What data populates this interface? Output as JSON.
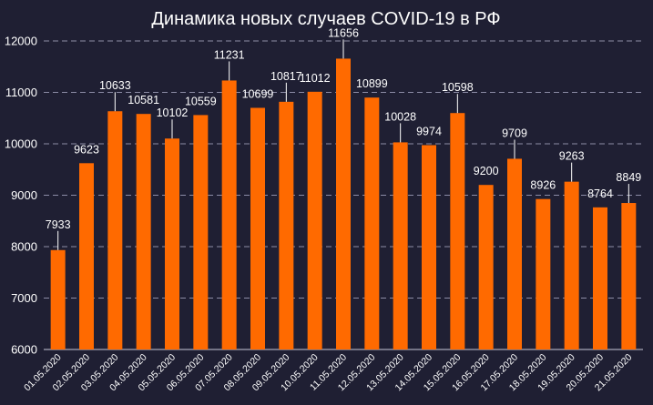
{
  "chart_data": {
    "type": "bar",
    "title": "Динамика новых случаев COVID-19 в РФ",
    "xlabel": "",
    "ylabel": "",
    "ylim": [
      6000,
      12000
    ],
    "yticks": [
      6000,
      7000,
      8000,
      9000,
      10000,
      11000,
      12000
    ],
    "grid": true,
    "categories": [
      "01.05.2020",
      "02.05.2020",
      "03.05.2020",
      "04.05.2020",
      "05.05.2020",
      "06.05.2020",
      "07.05.2020",
      "08.05.2020",
      "09.05.2020",
      "10.05.2020",
      "11.05.2020",
      "12.05.2020",
      "13.05.2020",
      "14.05.2020",
      "15.05.2020",
      "16.05.2020",
      "17.05.2020",
      "18.05.2020",
      "19.05.2020",
      "20.05.2020",
      "21.05.2020"
    ],
    "values": [
      7933,
      9623,
      10633,
      10581,
      10102,
      10559,
      11231,
      10699,
      10817,
      11012,
      11656,
      10899,
      10028,
      9974,
      10598,
      9200,
      9709,
      8926,
      9263,
      8764,
      8849
    ],
    "bar_color": "#ff6a00"
  }
}
